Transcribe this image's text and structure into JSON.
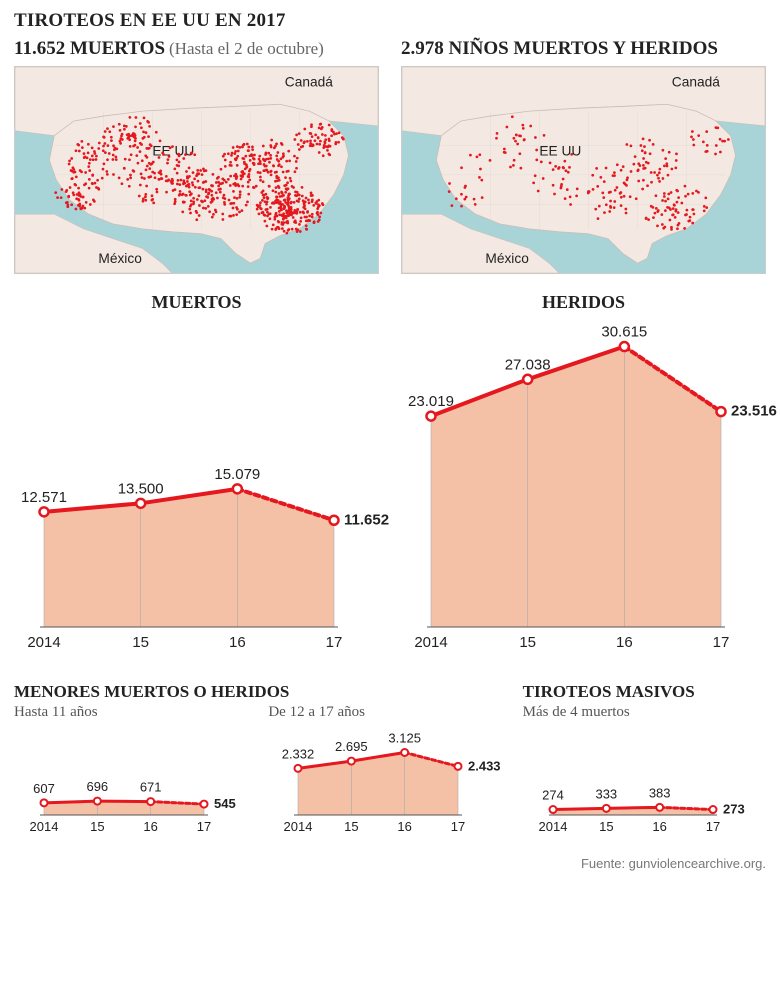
{
  "headline": "TIROTEOS EN EE UU EN 2017",
  "deaths_stat": "11.652 MUERTOS",
  "deaths_stat_sub": "(Hasta el 2 de octubre)",
  "children_stat": "2.978 NIÑOS MUERTOS Y HERIDOS",
  "map_labels": {
    "canada": "Canadá",
    "usa": "EE UU",
    "mexico": "México"
  },
  "colors": {
    "land": "#f3e9e2",
    "water": "#a8d4d8",
    "border": "#c9beb6",
    "dot": "#e4181e",
    "area_fill": "#f5c1a6",
    "line": "#e4181e",
    "marker_stroke": "#e4181e",
    "marker_fill": "#ffffff",
    "grid": "#aaaaaa",
    "axis": "#555555",
    "text": "#222222",
    "text_muted": "#666666"
  },
  "chart_muertos": {
    "title": "MUERTOS",
    "xlabels": [
      "2014",
      "15",
      "16",
      "17"
    ],
    "values": [
      12571,
      13500,
      15079,
      11652
    ],
    "value_labels": [
      "12.571",
      "13.500",
      "15.079",
      "11.652"
    ],
    "ymax": 31000,
    "last_bold": true,
    "last_dashed": true
  },
  "chart_heridos": {
    "title": "HERIDOS",
    "xlabels": [
      "2014",
      "15",
      "16",
      "17"
    ],
    "values": [
      23019,
      27038,
      30615,
      23516
    ],
    "value_labels": [
      "23.019",
      "27.038",
      "30.615",
      "23.516"
    ],
    "ymax": 31000,
    "last_bold": true,
    "last_dashed": true
  },
  "group_minors": {
    "title": "MENORES MUERTOS O HERIDOS",
    "sub_left": "Hasta 11 años",
    "sub_right": "De 12 a 17 años"
  },
  "chart_minors_under11": {
    "xlabels": [
      "2014",
      "15",
      "16",
      "17"
    ],
    "values": [
      607,
      696,
      671,
      545
    ],
    "value_labels": [
      "607",
      "696",
      "671",
      "545"
    ],
    "ymax": 3300,
    "last_bold": true,
    "last_dashed": true
  },
  "chart_minors_12_17": {
    "xlabels": [
      "2014",
      "15",
      "16",
      "17"
    ],
    "values": [
      2332,
      2695,
      3125,
      2433
    ],
    "value_labels": [
      "2.332",
      "2.695",
      "3.125",
      "2.433"
    ],
    "ymax": 3300,
    "last_bold": true,
    "last_dashed": true
  },
  "group_mass": {
    "title": "TIROTEOS MASIVOS",
    "sub": "Más de 4 muertos"
  },
  "chart_mass": {
    "xlabels": [
      "2014",
      "15",
      "16",
      "17"
    ],
    "values": [
      274,
      333,
      383,
      273
    ],
    "value_labels": [
      "274",
      "333",
      "383",
      "273"
    ],
    "ymax": 3300,
    "last_bold": true,
    "last_dashed": true
  },
  "source": "Fuente: gunviolencearchive.org.",
  "map_dots_dense_seed": 11652,
  "map_dots_sparse_seed": 2978
}
